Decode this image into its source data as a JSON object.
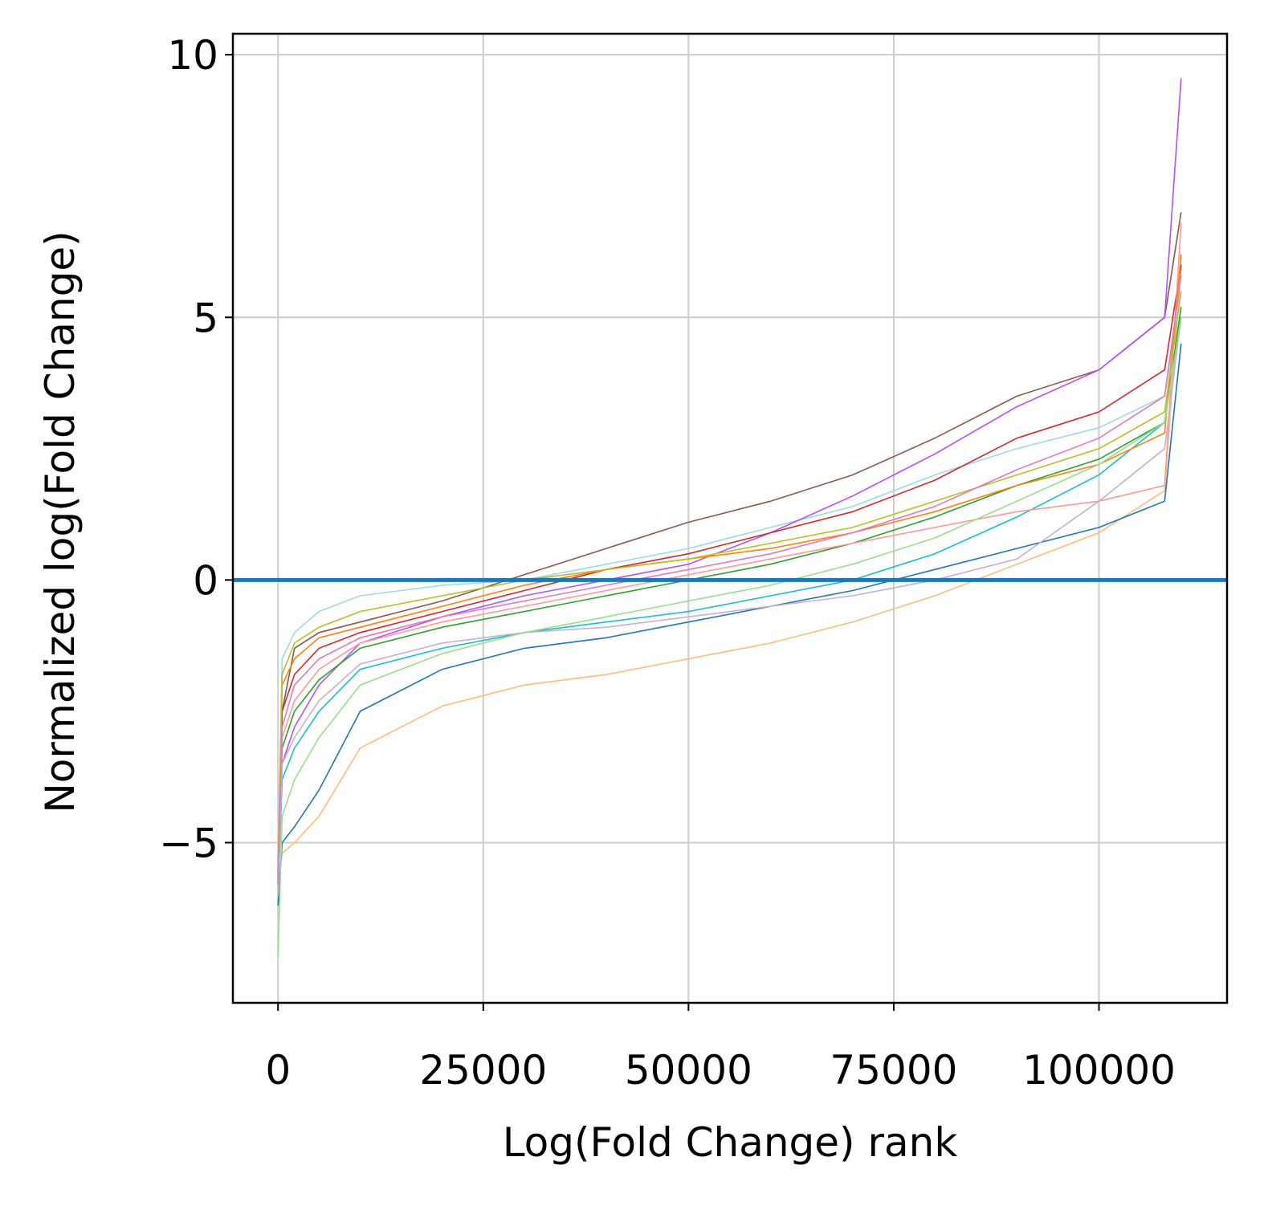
{
  "chart_data": {
    "type": "line",
    "x_label": "Log(Fold Change) rank",
    "y_label": "Normalized log(Fold Change)",
    "x": [
      0,
      500,
      2000,
      5000,
      10000,
      20000,
      30000,
      40000,
      50000,
      60000,
      70000,
      80000,
      90000,
      100000,
      108000,
      110000
    ],
    "series": [
      {
        "color": "#8c564b",
        "values": [
          -5.5,
          -2.5,
          -1.3,
          -1.0,
          -0.8,
          -0.4,
          0.1,
          0.6,
          1.1,
          1.5,
          2.0,
          2.7,
          3.5,
          4.0,
          5.0,
          7.0
        ]
      },
      {
        "color": "#ffbb78",
        "values": [
          -6.0,
          -5.2,
          -5.0,
          -4.5,
          -3.2,
          -2.4,
          -2.0,
          -1.8,
          -1.5,
          -1.2,
          -0.8,
          -0.3,
          0.3,
          0.9,
          1.7,
          6.0
        ]
      },
      {
        "color": "#1f77b4",
        "values": [
          -6.2,
          -5.0,
          -4.7,
          -4.0,
          -2.5,
          -1.7,
          -1.3,
          -1.1,
          -0.8,
          -0.5,
          -0.2,
          0.2,
          0.6,
          1.0,
          1.5,
          4.5
        ]
      },
      {
        "color": "#9edae5",
        "values": [
          -5.5,
          -1.5,
          -1.0,
          -0.6,
          -0.3,
          -0.1,
          0,
          0.3,
          0.6,
          1.0,
          1.4,
          2.0,
          2.5,
          2.9,
          3.5,
          5.5
        ]
      },
      {
        "color": "#b24fff",
        "values": [
          -5.8,
          -3.5,
          -2.8,
          -2.0,
          -1.2,
          -0.7,
          -0.3,
          0,
          0.3,
          0.9,
          1.6,
          2.4,
          3.3,
          4.0,
          5.0,
          9.55
        ]
      },
      {
        "color": "#d62728",
        "values": [
          -5.6,
          -2.5,
          -1.8,
          -1.3,
          -1.0,
          -0.6,
          -0.2,
          0.2,
          0.5,
          0.9,
          1.3,
          1.9,
          2.7,
          3.2,
          4.0,
          6.0
        ]
      },
      {
        "color": "#2ca02c",
        "values": [
          -5.8,
          -3.2,
          -2.5,
          -1.9,
          -1.3,
          -0.9,
          -0.6,
          -0.3,
          0,
          0.3,
          0.7,
          1.2,
          1.8,
          2.3,
          3.0,
          5.2
        ]
      },
      {
        "color": "#17becf",
        "values": [
          -6.0,
          -3.8,
          -3.2,
          -2.5,
          -1.7,
          -1.3,
          -1.0,
          -0.8,
          -0.6,
          -0.3,
          0,
          0.5,
          1.2,
          2.0,
          3.0,
          5.0
        ]
      },
      {
        "color": "#ff9896",
        "values": [
          -5.7,
          -3.0,
          -2.3,
          -1.7,
          -1.2,
          -0.8,
          -0.5,
          -0.2,
          0.1,
          0.4,
          0.7,
          1.0,
          1.3,
          1.5,
          1.8,
          6.8
        ]
      },
      {
        "color": "#c5b0d5",
        "values": [
          -6.0,
          -3.5,
          -3.0,
          -2.3,
          -1.6,
          -1.2,
          -1.0,
          -0.9,
          -0.7,
          -0.5,
          -0.3,
          0,
          0.4,
          1.5,
          2.5,
          5.0
        ]
      },
      {
        "color": "#ff7f0e",
        "values": [
          -5.6,
          -2.0,
          -1.5,
          -1.1,
          -0.9,
          -0.5,
          -0.1,
          0.2,
          0.4,
          0.6,
          0.9,
          1.3,
          1.8,
          2.2,
          2.8,
          6.2
        ]
      },
      {
        "color": "#98df8a",
        "values": [
          -7.2,
          -4.5,
          -3.8,
          -3.0,
          -2.0,
          -1.4,
          -1.0,
          -0.7,
          -0.4,
          -0.1,
          0.3,
          0.8,
          1.5,
          2.2,
          3.0,
          5.0
        ]
      },
      {
        "color": "#bcbd22",
        "values": [
          -5.5,
          -1.8,
          -1.2,
          -0.9,
          -0.6,
          -0.3,
          0,
          0.2,
          0.4,
          0.7,
          1.0,
          1.5,
          2.0,
          2.5,
          3.2,
          5.5
        ]
      },
      {
        "color": "#e377c2",
        "values": [
          -5.7,
          -2.8,
          -2.0,
          -1.5,
          -1.1,
          -0.7,
          -0.4,
          -0.1,
          0.2,
          0.5,
          0.9,
          1.4,
          2.1,
          2.7,
          3.5,
          5.8
        ]
      }
    ],
    "hline": {
      "value": 0,
      "color": "#1f77b4"
    },
    "xlim": [
      -5500,
      115600
    ],
    "ylim": [
      -8.05,
      10.4
    ],
    "xticks": [
      0,
      25000,
      50000,
      75000,
      100000
    ],
    "yticks": [
      {
        "value": -5,
        "label": "−5"
      },
      0,
      5,
      10
    ],
    "grid": true
  }
}
